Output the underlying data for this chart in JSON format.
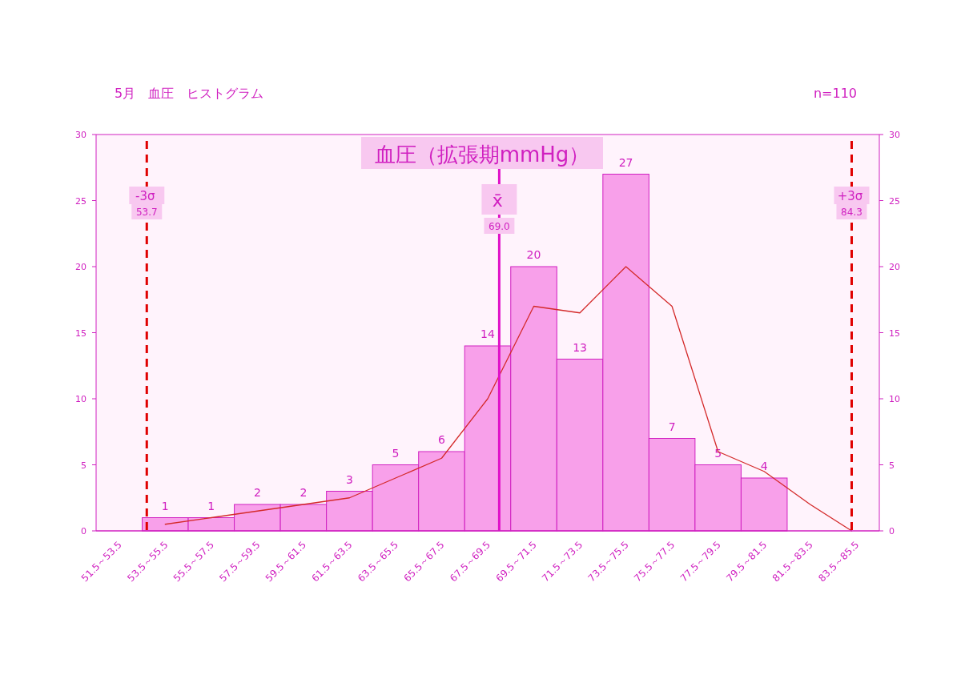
{
  "chart_data": {
    "type": "histogram",
    "title": "5月　血圧　ヒストグラム",
    "subtitle": "血圧（拡張期mmHg）",
    "annotations": [
      "n=110"
    ],
    "bins": [
      51.5,
      53.5,
      55.5,
      57.5,
      59.5,
      61.5,
      63.5,
      65.5,
      67.5,
      69.5,
      71.5,
      73.5,
      75.5,
      77.5,
      79.5,
      81.5,
      83.5,
      85.5
    ],
    "values": [
      0,
      1,
      1,
      2,
      2,
      3,
      5,
      6,
      14,
      20,
      13,
      27,
      7,
      5,
      4,
      0,
      0
    ],
    "value_labels": [
      null,
      "1",
      "1",
      "2",
      "2",
      "3",
      "5",
      "6",
      "14",
      "20",
      "13",
      "27",
      "7",
      "5",
      "4",
      null,
      null
    ],
    "color": "#f8a0ea",
    "series": [
      {
        "type": "line",
        "color": "#d42a2a",
        "x": [
          54.5,
          56.5,
          58.5,
          60.5,
          62.5,
          64.5,
          66.5,
          68.5,
          70.5,
          72.5,
          74.5,
          76.5,
          78.5,
          80.5,
          82.5,
          84.3
        ],
        "values": [
          0.5,
          1.0,
          1.5,
          2.0,
          2.5,
          4.0,
          5.5,
          10,
          17,
          16.5,
          20,
          17,
          6,
          4.5,
          2,
          0
        ]
      }
    ],
    "xlim": [
      51.5,
      85.5
    ],
    "categories": [
      "51.5～53.5",
      "53.5～55.5",
      "55.5～57.5",
      "57.5～59.5",
      "59.5～61.5",
      "61.5～63.5",
      "63.5～65.5",
      "65.5～67.5",
      "67.5～69.5",
      "69.5～71.5",
      "71.5～73.5",
      "73.5～75.5",
      "75.5～77.5",
      "77.5～79.5",
      "79.5～81.5",
      "81.5～83.5",
      "83.5～85.5"
    ],
    "ylim": [
      0,
      30
    ],
    "yticks": [
      0,
      5,
      10,
      15,
      20,
      25,
      30
    ],
    "y2lim": [
      0,
      30
    ],
    "y2ticks": [
      0,
      5,
      10,
      15,
      20,
      25,
      30
    ],
    "ref_lines": [
      {
        "axis": "x",
        "value": 53.7,
        "label": "-3σ 53.7",
        "color": "#e00000",
        "line_style": "dashed"
      },
      {
        "axis": "x",
        "value": 69.0,
        "label": "x̄ 69.0",
        "color": "#e010c8",
        "line_style": "solid"
      },
      {
        "axis": "x",
        "value": 84.3,
        "label": "+3σ 84.3",
        "color": "#e00000",
        "line_style": "dashed"
      }
    ],
    "grid": false,
    "marker": "none",
    "line_style": "solid"
  }
}
